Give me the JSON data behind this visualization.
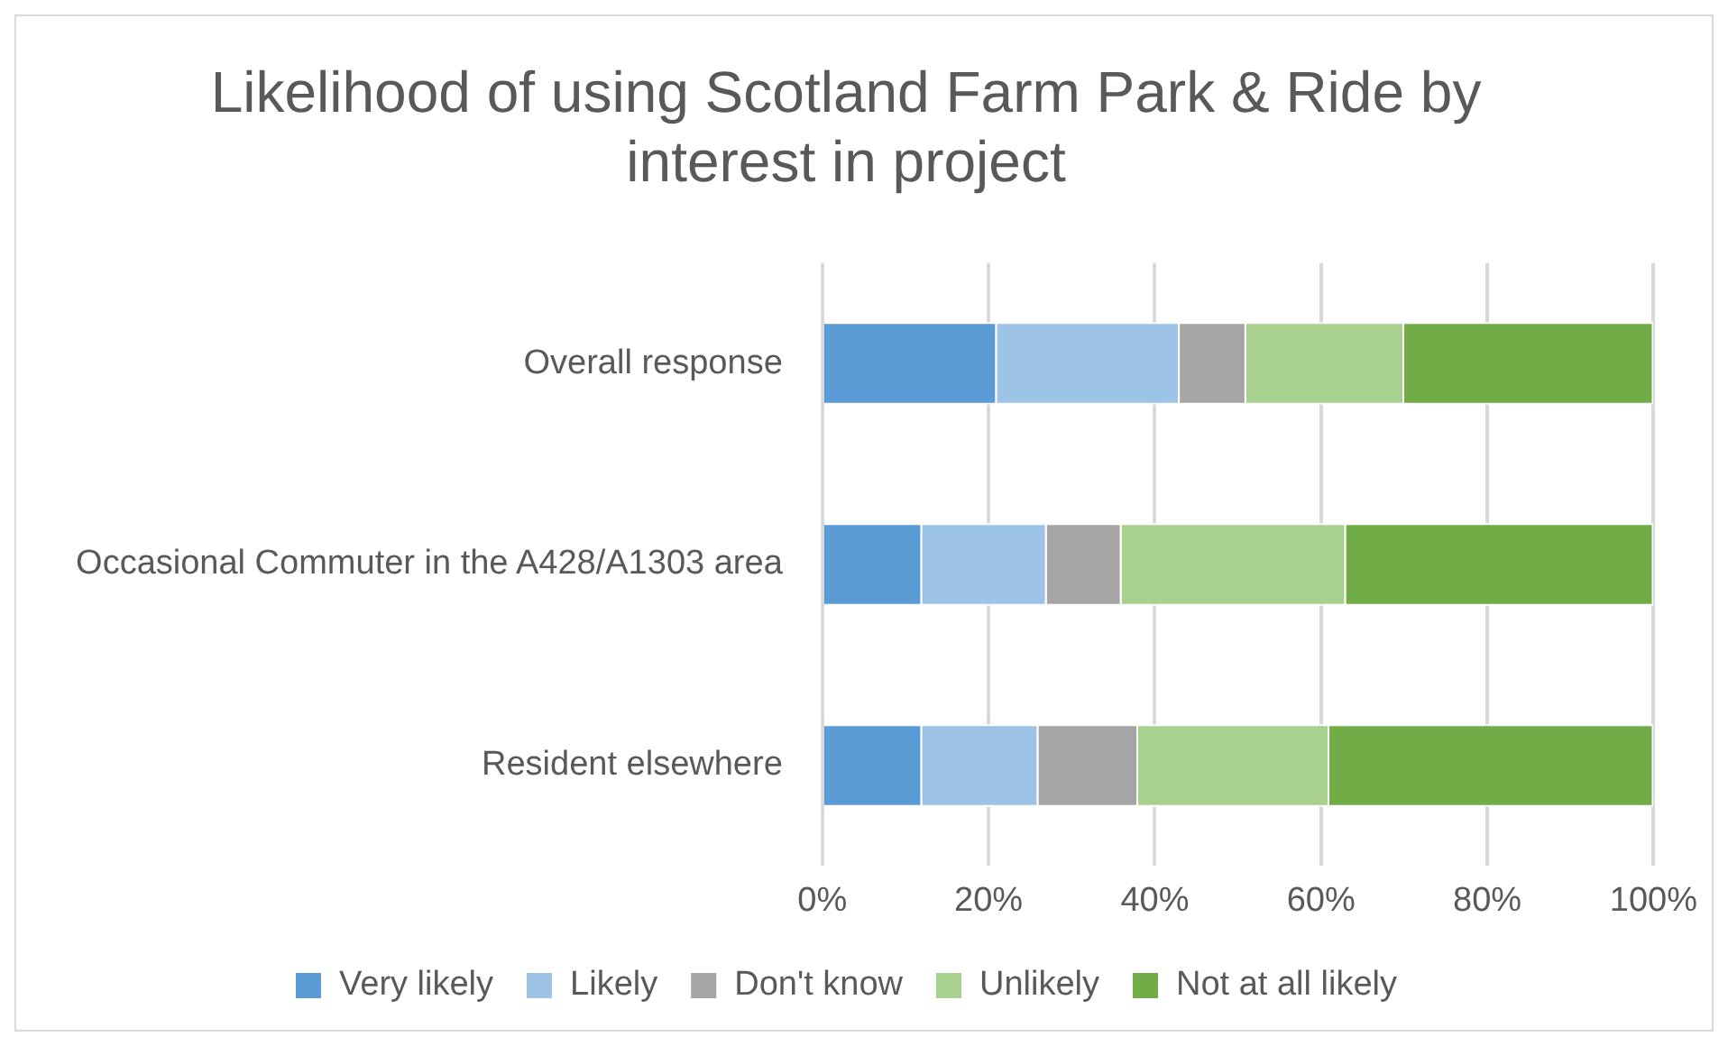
{
  "chart_data": {
    "type": "bar",
    "orientation": "horizontal",
    "stacked": true,
    "title": "Likelihood of using Scotland Farm Park & Ride by interest in project",
    "categories": [
      "Overall response",
      "Occasional Commuter in the A428/A1303 area",
      "Resident elsewhere"
    ],
    "series": [
      {
        "name": "Very likely",
        "color": "#5b9bd5",
        "values": [
          21,
          12,
          12
        ]
      },
      {
        "name": "Likely",
        "color": "#9dc3e6",
        "values": [
          22,
          15,
          14
        ]
      },
      {
        "name": "Don't know",
        "color": "#a5a5a5",
        "values": [
          8,
          9,
          12
        ]
      },
      {
        "name": "Unlikely",
        "color": "#a9d18e",
        "values": [
          19,
          27,
          23
        ]
      },
      {
        "name": "Not at all likely",
        "color": "#70ad47",
        "values": [
          30,
          37,
          39
        ]
      }
    ],
    "xlim": [
      0,
      100
    ],
    "xticks": [
      {
        "value": 0,
        "label": "0%"
      },
      {
        "value": 20,
        "label": "20%"
      },
      {
        "value": 40,
        "label": "40%"
      },
      {
        "value": 60,
        "label": "60%"
      },
      {
        "value": 80,
        "label": "80%"
      },
      {
        "value": 100,
        "label": "100%"
      }
    ],
    "grid": "x",
    "legend": "bottom"
  }
}
